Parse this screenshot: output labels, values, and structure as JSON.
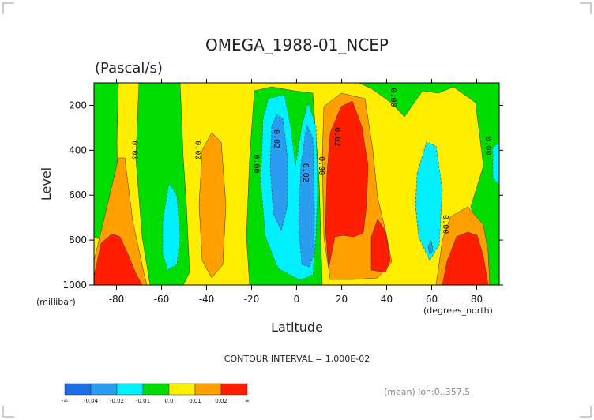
{
  "chart_data": {
    "type": "heatmap",
    "title": "OMEGA_1988-01_NCEP",
    "subtitle": "(Pascal/s)",
    "xlabel": "Latitude",
    "ylabel": "Level",
    "x_unit": "(degrees_north)",
    "y_unit": "(millibar)",
    "xlim": [
      -90,
      90
    ],
    "ylim": [
      1000,
      100
    ],
    "x_ticks": [
      -80,
      -60,
      -40,
      -20,
      0,
      20,
      40,
      60,
      80
    ],
    "y_ticks": [
      1000,
      800,
      600,
      400,
      200
    ],
    "contour_interval": "CONTOUR INTERVAL = 1.000E-02",
    "footnote": "(mean) lon:0..357.5",
    "colorbar": {
      "labels": [
        "-∞",
        "-0.04",
        "-0.02",
        "-0.01",
        "0.0",
        "0.01",
        "0.02",
        "∞"
      ],
      "colors": [
        "#1a6ee8",
        "#2a9df0",
        "#00f0ff",
        "#00dc00",
        "#fff000",
        "#ffa000",
        "#ff1e00"
      ]
    },
    "contour_labels": [
      {
        "text": "0.00",
        "x": -73,
        "y": 400
      },
      {
        "text": "0.00",
        "x": -45,
        "y": 400
      },
      {
        "text": "0.00",
        "x": -19,
        "y": 460
      },
      {
        "text": "0.02",
        "x": -10,
        "y": 350
      },
      {
        "text": "0.02",
        "x": 3,
        "y": 500
      },
      {
        "text": "0.00",
        "x": 10,
        "y": 470
      },
      {
        "text": "0.02",
        "x": 17,
        "y": 340
      },
      {
        "text": "0.00",
        "x": 42,
        "y": 165
      },
      {
        "text": "0.00",
        "x": 65,
        "y": 730
      },
      {
        "text": "0.00",
        "x": 84,
        "y": 380
      }
    ]
  }
}
